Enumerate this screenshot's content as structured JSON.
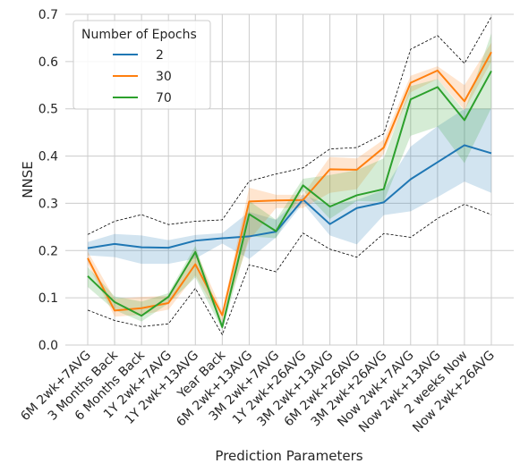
{
  "chart_data": {
    "type": "line",
    "title": "",
    "xlabel": "Prediction Parameters",
    "ylabel": "NNSE",
    "ylim": [
      0,
      0.7
    ],
    "yticks": [
      "0.0",
      "0.1",
      "0.2",
      "0.3",
      "0.4",
      "0.5",
      "0.6",
      "0.7"
    ],
    "grid": true,
    "legend": {
      "title": "Number of Epochs",
      "placement": "top-left"
    },
    "categories": [
      "6M 2wk+7AVG",
      "3 Months Back",
      "6 Months Back",
      "1Y 2wk+7AVG",
      "1Y 2wk+13AVG",
      "Year Back",
      "6M 2wk+13AVG",
      "3M 2wk+7AVG",
      "1Y 2wk+26AVG",
      "3M 2wk+13AVG",
      "6M 2wk+26AVG",
      "3M 2wk+26AVG",
      "Now 2wk+7AVG",
      "Now 2wk+13AVG",
      "2 weeks Now",
      "Now 2wk+26AVG"
    ],
    "series": [
      {
        "name": "2",
        "color": "#1f77b4",
        "values": [
          0.205,
          0.214,
          0.207,
          0.206,
          0.221,
          0.226,
          0.23,
          0.24,
          0.308,
          0.256,
          0.29,
          0.302,
          0.351,
          0.387,
          0.423,
          0.406
        ],
        "upper": [
          0.218,
          0.235,
          0.232,
          0.222,
          0.233,
          0.237,
          0.282,
          0.265,
          0.318,
          0.296,
          0.307,
          0.328,
          0.42,
          0.463,
          0.5,
          0.5
        ],
        "lower": [
          0.19,
          0.186,
          0.172,
          0.172,
          0.183,
          0.215,
          0.182,
          0.228,
          0.3,
          0.232,
          0.213,
          0.275,
          0.283,
          0.313,
          0.346,
          0.322
        ]
      },
      {
        "name": "30",
        "color": "#ff7f0e",
        "values": [
          0.184,
          0.073,
          0.078,
          0.089,
          0.171,
          0.063,
          0.304,
          0.306,
          0.307,
          0.372,
          0.371,
          0.418,
          0.555,
          0.581,
          0.516,
          0.62
        ],
        "upper": [
          0.198,
          0.098,
          0.102,
          0.104,
          0.202,
          0.072,
          0.333,
          0.318,
          0.318,
          0.398,
          0.395,
          0.435,
          0.57,
          0.59,
          0.55,
          0.64
        ],
        "lower": [
          0.172,
          0.06,
          0.064,
          0.075,
          0.148,
          0.05,
          0.222,
          0.29,
          0.29,
          0.322,
          0.33,
          0.405,
          0.535,
          0.563,
          0.497,
          0.6
        ]
      },
      {
        "name": "70",
        "color": "#2ca02c",
        "values": [
          0.146,
          0.091,
          0.062,
          0.102,
          0.197,
          0.038,
          0.277,
          0.241,
          0.338,
          0.293,
          0.317,
          0.33,
          0.52,
          0.546,
          0.476,
          0.58
        ],
        "upper": [
          0.165,
          0.103,
          0.092,
          0.11,
          0.21,
          0.048,
          0.305,
          0.265,
          0.352,
          0.36,
          0.37,
          0.395,
          0.548,
          0.563,
          0.495,
          0.66
        ],
        "lower": [
          0.123,
          0.074,
          0.05,
          0.088,
          0.143,
          0.032,
          0.23,
          0.226,
          0.327,
          0.267,
          0.305,
          0.303,
          0.443,
          0.462,
          0.385,
          0.502
        ]
      }
    ],
    "envelope_upper": [
      0.234,
      0.262,
      0.276,
      0.255,
      0.262,
      0.265,
      0.347,
      0.362,
      0.375,
      0.415,
      0.418,
      0.447,
      0.626,
      0.655,
      0.596,
      0.695
    ],
    "envelope_lower": [
      0.074,
      0.052,
      0.039,
      0.045,
      0.12,
      0.022,
      0.17,
      0.155,
      0.237,
      0.203,
      0.186,
      0.236,
      0.228,
      0.268,
      0.298,
      0.276
    ]
  }
}
